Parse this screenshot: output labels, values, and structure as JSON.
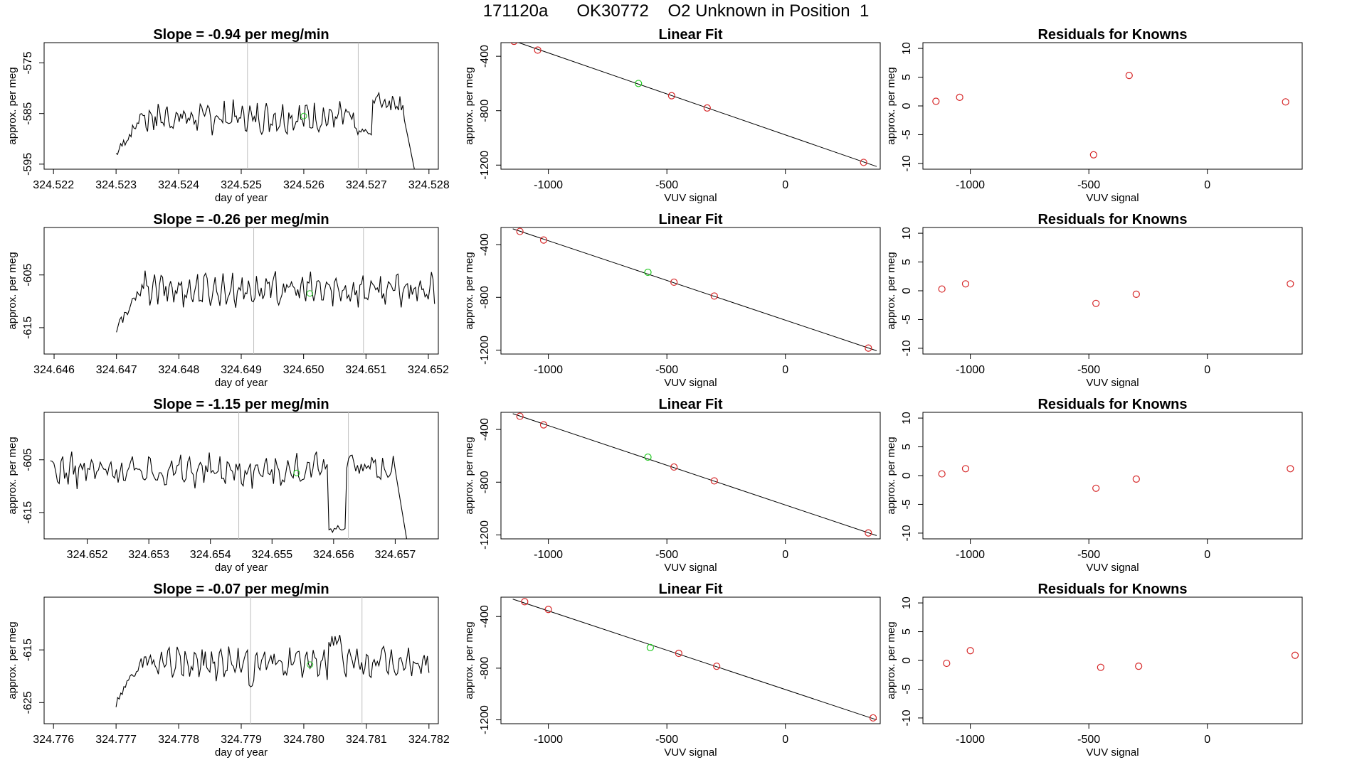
{
  "header": {
    "sample_id": "171120a",
    "flask_id": "OK30772",
    "description": "O2 Unknown in Position  1"
  },
  "chart_data": [
    {
      "type": "line",
      "row": 1,
      "title": "Slope =  -0.94  per meg/min",
      "xlabel": "day of year",
      "ylabel": "approx. per meg",
      "xlim": [
        324.52185,
        324.52815
      ],
      "ylim": [
        -596,
        -571
      ],
      "xticks": [
        324.522,
        324.523,
        324.524,
        324.525,
        324.526,
        324.527,
        324.528
      ],
      "xtick_labels": [
        "324.522",
        "324.523",
        "324.524",
        "324.525",
        "324.526",
        "324.527",
        "324.528"
      ],
      "yticks": [
        -575,
        -585,
        -595
      ],
      "ytick_labels": [
        "-575",
        "-585",
        "-595"
      ],
      "vlines": [
        324.5251,
        324.52687
      ],
      "green_point": {
        "x": 324.526,
        "y": -585.5
      },
      "trace": {
        "start": 324.523,
        "end": 324.5278,
        "base": -585.8,
        "amp": 2.6,
        "seg": [
          [
            324.523,
            324.5234,
            -593.0
          ],
          [
            324.527,
            324.5276,
            -582.5
          ]
        ],
        "dips": [
          [
            324.5268,
            324.5271,
            -588.5
          ]
        ],
        "drop": [
          324.5276,
          324.5278,
          -598
        ]
      }
    },
    {
      "type": "line",
      "row": 2,
      "title": "Slope =  -0.26  per meg/min",
      "xlabel": "day of year",
      "ylabel": "approx. per meg",
      "xlim": [
        324.64584,
        324.65216
      ],
      "ylim": [
        -620,
        -596
      ],
      "xticks": [
        324.646,
        324.647,
        324.648,
        324.649,
        324.65,
        324.651,
        324.652
      ],
      "xtick_labels": [
        "324.646",
        "324.647",
        "324.648",
        "324.649",
        "324.650",
        "324.651",
        "324.652"
      ],
      "yticks": [
        -605,
        -615
      ],
      "ytick_labels": [
        "-605",
        "-615"
      ],
      "vlines": [
        324.6492,
        324.65096
      ],
      "green_point": {
        "x": 324.6501,
        "y": -608.5
      },
      "trace": {
        "start": 324.647,
        "end": 324.6521,
        "base": -607.8,
        "amp": 2.7,
        "seg": [
          [
            324.647,
            324.6474,
            -615.0
          ]
        ],
        "dips": [],
        "drop": null
      }
    },
    {
      "type": "line",
      "row": 3,
      "title": "Slope =  -1.15  per meg/min",
      "xlabel": "day of year",
      "ylabel": "approx. per meg",
      "xlim": [
        324.6513,
        324.6577
      ],
      "ylim": [
        -620,
        -596
      ],
      "xticks": [
        324.652,
        324.653,
        324.654,
        324.655,
        324.656,
        324.657
      ],
      "xtick_labels": [
        "324.652",
        "324.653",
        "324.654",
        "324.655",
        "324.656",
        "324.657"
      ],
      "yticks": [
        -605,
        -615
      ],
      "ytick_labels": [
        "-605",
        "-615"
      ],
      "vlines": [
        324.65446,
        324.65624
      ],
      "green_point": {
        "x": 324.6554,
        "y": -607.5
      },
      "trace": {
        "start": 324.6514,
        "end": 324.6572,
        "base": -607.0,
        "amp": 2.6,
        "seg": [
          [
            324.6562,
            324.6567,
            -606.0
          ]
        ],
        "dips": [
          [
            324.6559,
            324.6562,
            -618.0
          ]
        ],
        "drop": [
          324.657,
          324.6572,
          -621
        ]
      }
    },
    {
      "type": "line",
      "row": 4,
      "title": "Slope =  -0.07  per meg/min",
      "xlabel": "day of year",
      "ylabel": "approx. per meg",
      "xlim": [
        324.77585,
        324.78215
      ],
      "ylim": [
        -629,
        -605
      ],
      "xticks": [
        324.776,
        324.777,
        324.778,
        324.779,
        324.78,
        324.781,
        324.782
      ],
      "xtick_labels": [
        "324.776",
        "324.777",
        "324.778",
        "324.779",
        "324.780",
        "324.781",
        "324.782"
      ],
      "yticks": [
        -615,
        -625
      ],
      "ytick_labels": [
        "-615",
        "-625"
      ],
      "vlines": [
        324.77915,
        324.78093
      ],
      "green_point": {
        "x": 324.7801,
        "y": -617.8
      },
      "trace": {
        "start": 324.777,
        "end": 324.782,
        "base": -617.5,
        "amp": 2.5,
        "seg": [
          [
            324.777,
            324.7774,
            -625.0
          ],
          [
            324.7804,
            324.7806,
            -613.0
          ]
        ],
        "dips": [
          [
            324.7791,
            324.7792,
            -621.5
          ]
        ],
        "drop": null
      }
    },
    {
      "type": "scatter",
      "row": 1,
      "title": "Linear Fit",
      "xlabel": "VUV signal",
      "ylabel": "approx. per meg",
      "xlim": [
        -1200,
        400
      ],
      "ylim": [
        -1230,
        -300
      ],
      "xticks": [
        -1000,
        -500,
        0
      ],
      "xtick_labels": [
        "-1000",
        "-500",
        "0"
      ],
      "yticks": [
        -400,
        -800,
        -1200
      ],
      "ytick_labels": [
        "-400",
        "-800",
        "-1200"
      ],
      "line": {
        "x": [
          -1150,
          385
        ],
        "y": [
          -285,
          -1210
        ]
      },
      "knowns": {
        "x": [
          -1145,
          -1045,
          -480,
          -330,
          330
        ],
        "y": [
          -290,
          -355,
          -690,
          -780,
          -1180
        ]
      },
      "unknown": {
        "x": [
          -620
        ],
        "y": [
          -600
        ]
      }
    },
    {
      "type": "scatter",
      "row": 2,
      "title": "Linear Fit",
      "xlabel": "VUV signal",
      "ylabel": "approx. per meg",
      "xlim": [
        -1200,
        400
      ],
      "ylim": [
        -1230,
        -270
      ],
      "xticks": [
        -1000,
        -500,
        0
      ],
      "xtick_labels": [
        "-1000",
        "-500",
        "0"
      ],
      "yticks": [
        -400,
        -800,
        -1200
      ],
      "ytick_labels": [
        "-400",
        "-800",
        "-1200"
      ],
      "line": {
        "x": [
          -1150,
          385
        ],
        "y": [
          -280,
          -1205
        ]
      },
      "knowns": {
        "x": [
          -1120,
          -1020,
          -470,
          -300,
          350
        ],
        "y": [
          -300,
          -365,
          -685,
          -790,
          -1185
        ]
      },
      "unknown": {
        "x": [
          -580
        ],
        "y": [
          -610
        ]
      }
    },
    {
      "type": "scatter",
      "row": 3,
      "title": "Linear Fit",
      "xlabel": "VUV signal",
      "ylabel": "approx. per meg",
      "xlim": [
        -1200,
        400
      ],
      "ylim": [
        -1230,
        -270
      ],
      "xticks": [
        -1000,
        -500,
        0
      ],
      "xtick_labels": [
        "-1000",
        "-500",
        "0"
      ],
      "yticks": [
        -400,
        -800,
        -1200
      ],
      "ytick_labels": [
        "-400",
        "-800",
        "-1200"
      ],
      "line": {
        "x": [
          -1150,
          385
        ],
        "y": [
          -280,
          -1205
        ]
      },
      "knowns": {
        "x": [
          -1120,
          -1020,
          -470,
          -300,
          350
        ],
        "y": [
          -300,
          -365,
          -685,
          -790,
          -1185
        ]
      },
      "unknown": {
        "x": [
          -580
        ],
        "y": [
          -610
        ]
      }
    },
    {
      "type": "scatter",
      "row": 4,
      "title": "Linear Fit",
      "xlabel": "VUV signal",
      "ylabel": "approx. per meg",
      "xlim": [
        -1200,
        400
      ],
      "ylim": [
        -1230,
        -250
      ],
      "xticks": [
        -1000,
        -500,
        0
      ],
      "xtick_labels": [
        "-1000",
        "-500",
        "0"
      ],
      "yticks": [
        -400,
        -800,
        -1200
      ],
      "ytick_labels": [
        "-400",
        "-800",
        "-1200"
      ],
      "line": {
        "x": [
          -1150,
          385
        ],
        "y": [
          -265,
          -1200
        ]
      },
      "knowns": {
        "x": [
          -1100,
          -1000,
          -450,
          -290,
          370
        ],
        "y": [
          -285,
          -345,
          -685,
          -785,
          -1185
        ]
      },
      "unknown": {
        "x": [
          -570
        ],
        "y": [
          -640
        ]
      }
    },
    {
      "type": "scatter",
      "row": 1,
      "title": "Residuals for Knowns",
      "xlabel": "VUV signal",
      "ylabel": "approx. per meg",
      "xlim": [
        -1200,
        400
      ],
      "ylim": [
        -11,
        11
      ],
      "xticks": [
        -1000,
        -500,
        0
      ],
      "xtick_labels": [
        "-1000",
        "-500",
        "0"
      ],
      "yticks": [
        10,
        5,
        0,
        -5,
        -10
      ],
      "ytick_labels": [
        "10",
        "5",
        "0",
        "-5",
        "-10"
      ],
      "points": {
        "x": [
          -1145,
          -1045,
          -480,
          -330,
          330
        ],
        "y": [
          0.8,
          1.5,
          -8.5,
          5.3,
          0.7
        ]
      }
    },
    {
      "type": "scatter",
      "row": 2,
      "title": "Residuals for Knowns",
      "xlabel": "VUV signal",
      "ylabel": "approx. per meg",
      "xlim": [
        -1200,
        400
      ],
      "ylim": [
        -11,
        11
      ],
      "xticks": [
        -1000,
        -500,
        0
      ],
      "xtick_labels": [
        "-1000",
        "-500",
        "0"
      ],
      "yticks": [
        10,
        5,
        0,
        -5,
        -10
      ],
      "ytick_labels": [
        "10",
        "5",
        "0",
        "-5",
        "-10"
      ],
      "points": {
        "x": [
          -1120,
          -1020,
          -470,
          -300,
          350
        ],
        "y": [
          0.3,
          1.2,
          -2.2,
          -0.6,
          1.2
        ]
      }
    },
    {
      "type": "scatter",
      "row": 3,
      "title": "Residuals for Knowns",
      "xlabel": "VUV signal",
      "ylabel": "approx. per meg",
      "xlim": [
        -1200,
        400
      ],
      "ylim": [
        -11,
        11
      ],
      "xticks": [
        -1000,
        -500,
        0
      ],
      "xtick_labels": [
        "-1000",
        "-500",
        "0"
      ],
      "yticks": [
        10,
        5,
        0,
        -5,
        -10
      ],
      "ytick_labels": [
        "10",
        "5",
        "0",
        "-5",
        "-10"
      ],
      "points": {
        "x": [
          -1120,
          -1020,
          -470,
          -300,
          350
        ],
        "y": [
          0.3,
          1.2,
          -2.2,
          -0.6,
          1.2
        ]
      }
    },
    {
      "type": "scatter",
      "row": 4,
      "title": "Residuals for Knowns",
      "xlabel": "VUV signal",
      "ylabel": "approx. per meg",
      "xlim": [
        -1200,
        400
      ],
      "ylim": [
        -11,
        11
      ],
      "xticks": [
        -1000,
        -500,
        0
      ],
      "xtick_labels": [
        "-1000",
        "-500",
        "0"
      ],
      "yticks": [
        10,
        5,
        0,
        -5,
        -10
      ],
      "ytick_labels": [
        "10",
        "5",
        "0",
        "-5",
        "-10"
      ],
      "points": {
        "x": [
          -1100,
          -1000,
          -450,
          -290,
          370
        ],
        "y": [
          -0.5,
          1.7,
          -1.2,
          -1.0,
          0.9
        ]
      }
    }
  ],
  "colors": {
    "axis": "#000000",
    "trace": "#000000",
    "vline": "#bfbfbf",
    "known_point": "#d62728",
    "unknown_point": "#22c922",
    "fit_line": "#000000"
  }
}
